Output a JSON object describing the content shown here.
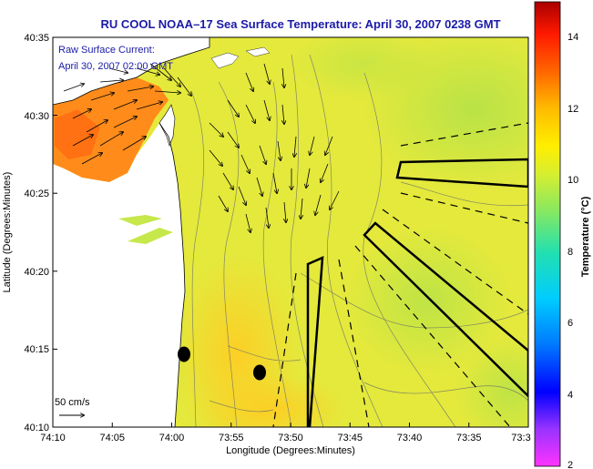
{
  "title": "RU COOL  NOAA–17  Sea Surface Temperature:  April 30, 2007 0238 GMT",
  "legend": {
    "line1": "Raw Surface Current:",
    "line2": "April 30, 2007 02:00 GMT",
    "scale_label": "50 cm/s"
  },
  "axes": {
    "xlabel": "Longitude (Degrees:Minutes)",
    "ylabel": "Latitude (Degrees:Minutes)",
    "x_ticks": [
      "74:10",
      "74:05",
      "74:00",
      "73:55",
      "73:50",
      "73:45",
      "73:40",
      "73:35",
      "73:3"
    ],
    "y_ticks": [
      "40:35",
      "40:30",
      "40:25",
      "40:20",
      "40:15",
      "40:10"
    ]
  },
  "colorbar": {
    "label": "Temperature (°C)",
    "ticks": [
      "14",
      "12",
      "10",
      "8",
      "6",
      "4",
      "2"
    ],
    "range": [
      2,
      15
    ]
  },
  "colors": {
    "title": "#1a1aa8",
    "ocean_main": "#e8ea3a",
    "land": "#ffffff",
    "outline": "#000000"
  },
  "map": {
    "lon_range": [
      "74:10",
      "73:30"
    ],
    "lat_range": [
      "40:10",
      "40:35"
    ],
    "features": [
      "sst-field",
      "current-vectors",
      "bathymetry-contours",
      "ship-lanes",
      "mooring-dots"
    ]
  }
}
